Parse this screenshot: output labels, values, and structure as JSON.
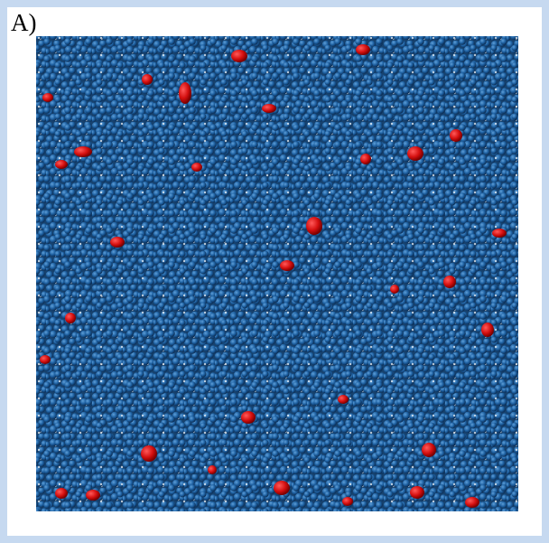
{
  "panel_label": "A)"
}
